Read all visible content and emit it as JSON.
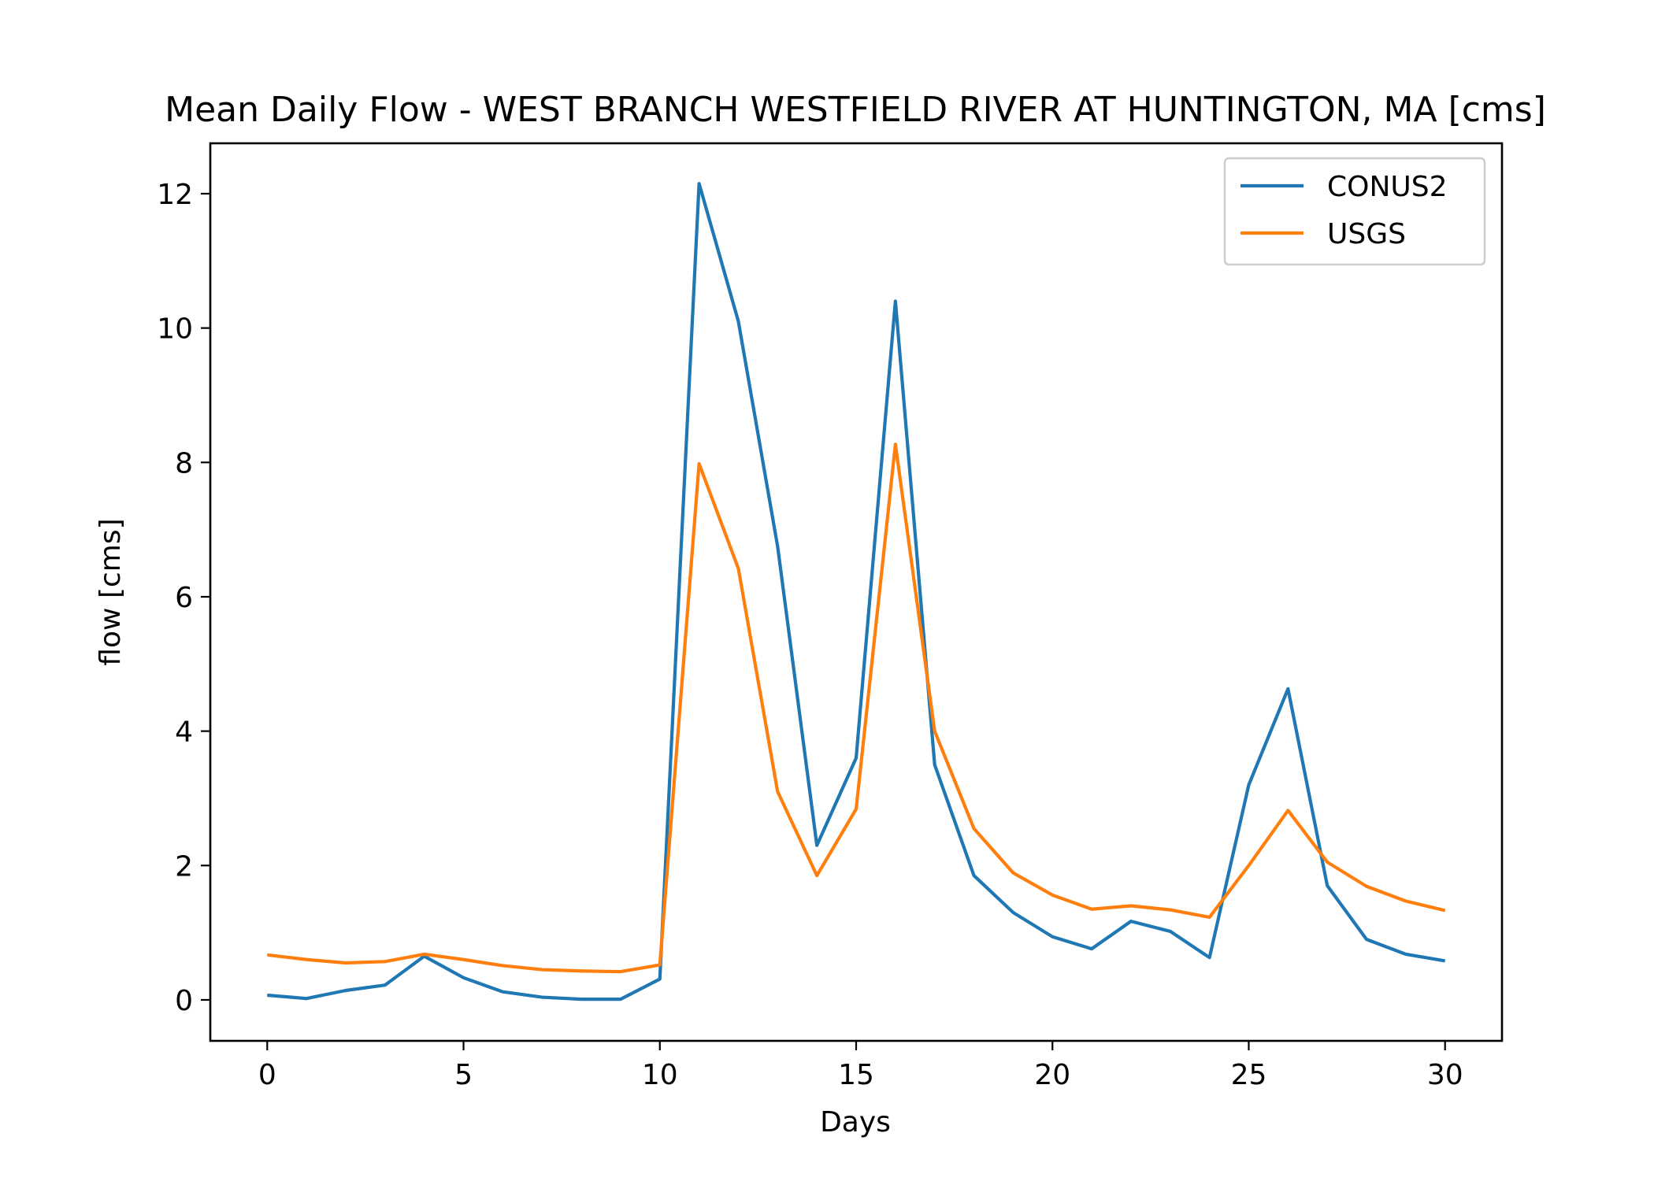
{
  "chart_data": {
    "type": "line",
    "title": "Mean Daily Flow - WEST BRANCH WESTFIELD RIVER AT HUNTINGTON, MA [cms]",
    "xlabel": "Days",
    "ylabel": "flow [cms]",
    "xlim": [
      -1.45,
      31.45
    ],
    "ylim": [
      -0.61,
      12.75
    ],
    "xticks": [
      0,
      5,
      10,
      15,
      20,
      25,
      30
    ],
    "yticks": [
      0,
      2,
      4,
      6,
      8,
      10,
      12
    ],
    "grid": false,
    "legend_position": "top-right",
    "x": [
      0,
      1,
      2,
      3,
      4,
      5,
      6,
      7,
      8,
      9,
      10,
      11,
      12,
      13,
      14,
      15,
      16,
      17,
      18,
      19,
      20,
      21,
      22,
      23,
      24,
      25,
      26,
      27,
      28,
      29,
      30
    ],
    "series": [
      {
        "name": "CONUS2",
        "color": "#1f77b4",
        "values": [
          0.07,
          0.02,
          0.14,
          0.22,
          0.65,
          0.33,
          0.12,
          0.04,
          0.01,
          0.01,
          0.31,
          12.15,
          10.1,
          6.75,
          2.3,
          3.6,
          10.4,
          3.5,
          1.85,
          1.3,
          0.94,
          0.76,
          1.17,
          1.02,
          0.63,
          3.2,
          4.63,
          1.7,
          0.9,
          0.68,
          0.58
        ]
      },
      {
        "name": "USGS",
        "color": "#ff7f0e",
        "values": [
          0.67,
          0.6,
          0.55,
          0.57,
          0.68,
          0.6,
          0.51,
          0.45,
          0.43,
          0.42,
          0.52,
          7.98,
          6.42,
          3.1,
          1.85,
          2.84,
          8.27,
          4.0,
          2.55,
          1.89,
          1.56,
          1.35,
          1.4,
          1.34,
          1.23,
          2.0,
          2.82,
          2.05,
          1.69,
          1.47,
          1.33
        ]
      }
    ]
  }
}
